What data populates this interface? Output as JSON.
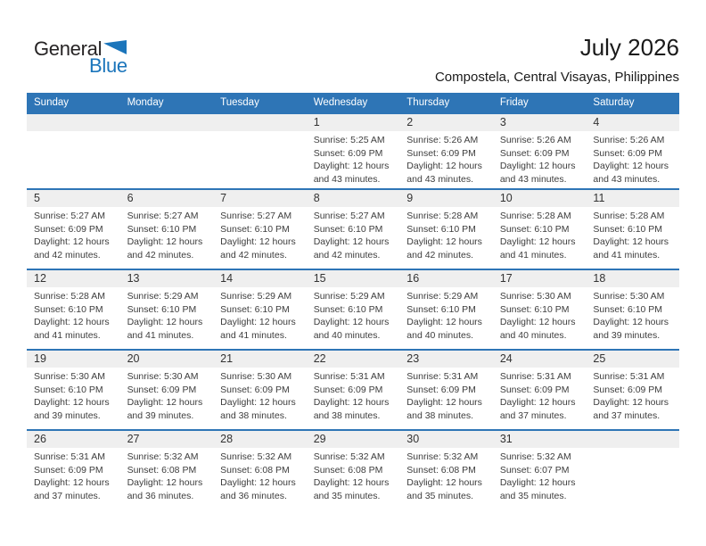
{
  "logo": {
    "word1": "General",
    "word2": "Blue",
    "triangle_color": "#1b75bb",
    "word1_color": "#262324",
    "word2_color": "#1b75bb"
  },
  "header": {
    "title": "July 2026",
    "subtitle": "Compostela, Central Visayas, Philippines"
  },
  "calendar": {
    "colors": {
      "header_bg": "#2e75b6",
      "row_border": "#2e75b6",
      "day_strip_bg": "#efefef",
      "header_text": "#ffffff"
    },
    "weekdays": [
      "Sunday",
      "Monday",
      "Tuesday",
      "Wednesday",
      "Thursday",
      "Friday",
      "Saturday"
    ],
    "labels": {
      "sunrise": "Sunrise:",
      "sunset": "Sunset:",
      "daylight": "Daylight:"
    },
    "weeks": [
      [
        null,
        null,
        null,
        {
          "day": "1",
          "sunrise": "5:25 AM",
          "sunset": "6:09 PM",
          "daylight_line1": "12 hours",
          "daylight_line2": "and 43 minutes."
        },
        {
          "day": "2",
          "sunrise": "5:26 AM",
          "sunset": "6:09 PM",
          "daylight_line1": "12 hours",
          "daylight_line2": "and 43 minutes."
        },
        {
          "day": "3",
          "sunrise": "5:26 AM",
          "sunset": "6:09 PM",
          "daylight_line1": "12 hours",
          "daylight_line2": "and 43 minutes."
        },
        {
          "day": "4",
          "sunrise": "5:26 AM",
          "sunset": "6:09 PM",
          "daylight_line1": "12 hours",
          "daylight_line2": "and 43 minutes."
        }
      ],
      [
        {
          "day": "5",
          "sunrise": "5:27 AM",
          "sunset": "6:09 PM",
          "daylight_line1": "12 hours",
          "daylight_line2": "and 42 minutes."
        },
        {
          "day": "6",
          "sunrise": "5:27 AM",
          "sunset": "6:10 PM",
          "daylight_line1": "12 hours",
          "daylight_line2": "and 42 minutes."
        },
        {
          "day": "7",
          "sunrise": "5:27 AM",
          "sunset": "6:10 PM",
          "daylight_line1": "12 hours",
          "daylight_line2": "and 42 minutes."
        },
        {
          "day": "8",
          "sunrise": "5:27 AM",
          "sunset": "6:10 PM",
          "daylight_line1": "12 hours",
          "daylight_line2": "and 42 minutes."
        },
        {
          "day": "9",
          "sunrise": "5:28 AM",
          "sunset": "6:10 PM",
          "daylight_line1": "12 hours",
          "daylight_line2": "and 42 minutes."
        },
        {
          "day": "10",
          "sunrise": "5:28 AM",
          "sunset": "6:10 PM",
          "daylight_line1": "12 hours",
          "daylight_line2": "and 41 minutes."
        },
        {
          "day": "11",
          "sunrise": "5:28 AM",
          "sunset": "6:10 PM",
          "daylight_line1": "12 hours",
          "daylight_line2": "and 41 minutes."
        }
      ],
      [
        {
          "day": "12",
          "sunrise": "5:28 AM",
          "sunset": "6:10 PM",
          "daylight_line1": "12 hours",
          "daylight_line2": "and 41 minutes."
        },
        {
          "day": "13",
          "sunrise": "5:29 AM",
          "sunset": "6:10 PM",
          "daylight_line1": "12 hours",
          "daylight_line2": "and 41 minutes."
        },
        {
          "day": "14",
          "sunrise": "5:29 AM",
          "sunset": "6:10 PM",
          "daylight_line1": "12 hours",
          "daylight_line2": "and 41 minutes."
        },
        {
          "day": "15",
          "sunrise": "5:29 AM",
          "sunset": "6:10 PM",
          "daylight_line1": "12 hours",
          "daylight_line2": "and 40 minutes."
        },
        {
          "day": "16",
          "sunrise": "5:29 AM",
          "sunset": "6:10 PM",
          "daylight_line1": "12 hours",
          "daylight_line2": "and 40 minutes."
        },
        {
          "day": "17",
          "sunrise": "5:30 AM",
          "sunset": "6:10 PM",
          "daylight_line1": "12 hours",
          "daylight_line2": "and 40 minutes."
        },
        {
          "day": "18",
          "sunrise": "5:30 AM",
          "sunset": "6:10 PM",
          "daylight_line1": "12 hours",
          "daylight_line2": "and 39 minutes."
        }
      ],
      [
        {
          "day": "19",
          "sunrise": "5:30 AM",
          "sunset": "6:10 PM",
          "daylight_line1": "12 hours",
          "daylight_line2": "and 39 minutes."
        },
        {
          "day": "20",
          "sunrise": "5:30 AM",
          "sunset": "6:09 PM",
          "daylight_line1": "12 hours",
          "daylight_line2": "and 39 minutes."
        },
        {
          "day": "21",
          "sunrise": "5:30 AM",
          "sunset": "6:09 PM",
          "daylight_line1": "12 hours",
          "daylight_line2": "and 38 minutes."
        },
        {
          "day": "22",
          "sunrise": "5:31 AM",
          "sunset": "6:09 PM",
          "daylight_line1": "12 hours",
          "daylight_line2": "and 38 minutes."
        },
        {
          "day": "23",
          "sunrise": "5:31 AM",
          "sunset": "6:09 PM",
          "daylight_line1": "12 hours",
          "daylight_line2": "and 38 minutes."
        },
        {
          "day": "24",
          "sunrise": "5:31 AM",
          "sunset": "6:09 PM",
          "daylight_line1": "12 hours",
          "daylight_line2": "and 37 minutes."
        },
        {
          "day": "25",
          "sunrise": "5:31 AM",
          "sunset": "6:09 PM",
          "daylight_line1": "12 hours",
          "daylight_line2": "and 37 minutes."
        }
      ],
      [
        {
          "day": "26",
          "sunrise": "5:31 AM",
          "sunset": "6:09 PM",
          "daylight_line1": "12 hours",
          "daylight_line2": "and 37 minutes."
        },
        {
          "day": "27",
          "sunrise": "5:32 AM",
          "sunset": "6:08 PM",
          "daylight_line1": "12 hours",
          "daylight_line2": "and 36 minutes."
        },
        {
          "day": "28",
          "sunrise": "5:32 AM",
          "sunset": "6:08 PM",
          "daylight_line1": "12 hours",
          "daylight_line2": "and 36 minutes."
        },
        {
          "day": "29",
          "sunrise": "5:32 AM",
          "sunset": "6:08 PM",
          "daylight_line1": "12 hours",
          "daylight_line2": "and 35 minutes."
        },
        {
          "day": "30",
          "sunrise": "5:32 AM",
          "sunset": "6:08 PM",
          "daylight_line1": "12 hours",
          "daylight_line2": "and 35 minutes."
        },
        {
          "day": "31",
          "sunrise": "5:32 AM",
          "sunset": "6:07 PM",
          "daylight_line1": "12 hours",
          "daylight_line2": "and 35 minutes."
        },
        null
      ]
    ]
  }
}
